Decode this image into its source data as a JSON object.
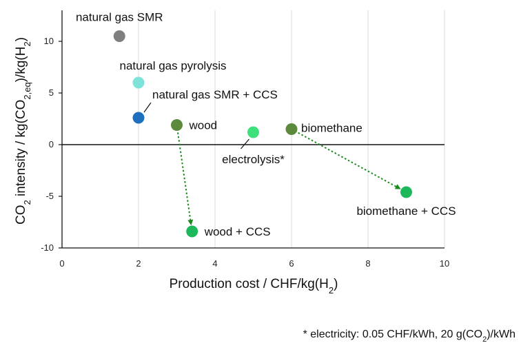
{
  "chart_data": {
    "type": "scatter",
    "xlabel": "Production cost  / CHF/kg(H",
    "xlabel_sub": "2",
    "xlabel_end": ")",
    "ylabel_parts": [
      "CO",
      "2",
      " intensity  / kg(CO",
      "2,eq",
      ")/kg(H",
      "2",
      ")"
    ],
    "xlim": [
      0,
      10
    ],
    "ylim": [
      -10,
      13
    ],
    "xticks": [
      0,
      2,
      4,
      6,
      8,
      10
    ],
    "yticks": [
      -10,
      -5,
      0,
      5,
      10
    ],
    "grid": "vertical",
    "points": [
      {
        "label": "natural gas SMR",
        "x": 1.5,
        "y": 10.5,
        "color": "#7f7f7f"
      },
      {
        "label": "natural gas pyrolysis",
        "x": 2.0,
        "y": 6.0,
        "color": "#7fe3d9"
      },
      {
        "label": "natural gas SMR + CCS",
        "x": 2.0,
        "y": 2.6,
        "color": "#1f6fbf"
      },
      {
        "label": "wood",
        "x": 3.0,
        "y": 1.9,
        "color": "#5b8a3c"
      },
      {
        "label": "electrolysis*",
        "x": 5.0,
        "y": 1.2,
        "color": "#3ee07a"
      },
      {
        "label": "biomethane",
        "x": 6.0,
        "y": 1.5,
        "color": "#5b8a3c"
      },
      {
        "label": "biomethane + CCS",
        "x": 9.0,
        "y": -4.6,
        "color": "#1db85a"
      },
      {
        "label": "wood + CCS",
        "x": 3.4,
        "y": -8.4,
        "color": "#1db85a"
      }
    ],
    "arrows": [
      {
        "from": "wood",
        "to": "wood + CCS",
        "color": "#1a8a1a"
      },
      {
        "from": "biomethane",
        "to": "biomethane + CCS",
        "color": "#1a8a1a"
      }
    ],
    "footnote_parts": [
      "* electricity: 0.05 CHF/kWh, 20 g(CO",
      "2",
      ")/kWh"
    ]
  }
}
